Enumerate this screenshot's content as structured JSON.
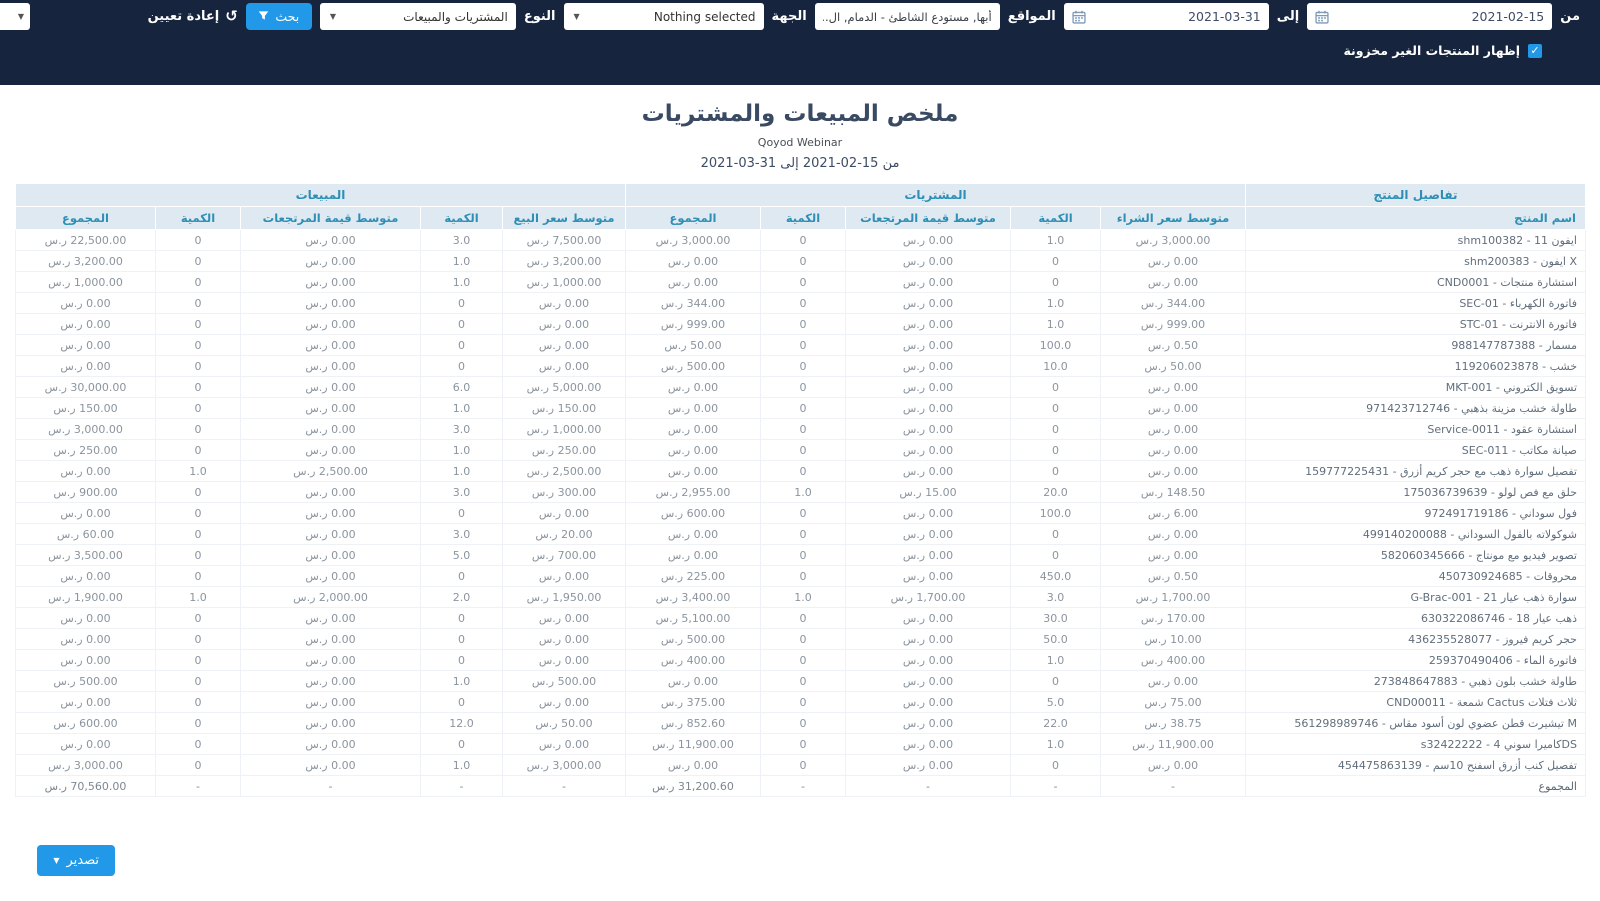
{
  "filters": {
    "from_label": "من",
    "from_value": "2021-02-15",
    "to_label": "إلى",
    "to_value": "2021-03-31",
    "locations_label": "المواقع",
    "locations_value": "أبها, مستودع الشاطئ - الدمام, ال...",
    "entity_label": "الجهة",
    "entity_value": "Nothing selected",
    "type_label": "النوع",
    "type_value": "المشتريات والمبيعات",
    "search_label": "بحث",
    "reset_label": "إعادة تعيين",
    "show_unstocked_label": "إظهار المنتجات الغير مخزونة",
    "show_unstocked_checked": true
  },
  "report": {
    "title": "ملخص المبيعات والمشتريات",
    "subtitle": "Qoyod Webinar",
    "date_range": "من 15-02-2021 إلى 31-03-2021"
  },
  "table": {
    "groups": {
      "product": "تفاصيل المنتج",
      "purchases": "المشتريات",
      "sales": "المبيعات"
    },
    "columns": {
      "product_name": "اسم المنتج",
      "purchase_avg_price": "متوسط سعر الشراء",
      "quantity": "الكمية",
      "avg_returns_value": "متوسط قيمة المرتجعات",
      "total": "المجموع",
      "sale_avg_price": "متوسط سعر البيع"
    },
    "rows": [
      [
        "shm100382 - ايفون 11",
        "3,000.00 ر.س",
        "1.0",
        "0.00 ر.س",
        "0",
        "3,000.00 ر.س",
        "7,500.00 ر.س",
        "3.0",
        "0.00 ر.س",
        "0",
        "22,500.00 ر.س"
      ],
      [
        "shm200383 - ايفون X",
        "0.00 ر.س",
        "0",
        "0.00 ر.س",
        "0",
        "0.00 ر.س",
        "3,200.00 ر.س",
        "1.0",
        "0.00 ر.س",
        "0",
        "3,200.00 ر.س"
      ],
      [
        "CND0001 - استشارة منتجات",
        "0.00 ر.س",
        "0",
        "0.00 ر.س",
        "0",
        "0.00 ر.س",
        "1,000.00 ر.س",
        "1.0",
        "0.00 ر.س",
        "0",
        "1,000.00 ر.س"
      ],
      [
        "SEC-01 - فاتورة الكهرباء",
        "344.00 ر.س",
        "1.0",
        "0.00 ر.س",
        "0",
        "344.00 ر.س",
        "0.00 ر.س",
        "0",
        "0.00 ر.س",
        "0",
        "0.00 ر.س"
      ],
      [
        "STC-01 - فاتورة الانترنت",
        "999.00 ر.س",
        "1.0",
        "0.00 ر.س",
        "0",
        "999.00 ر.س",
        "0.00 ر.س",
        "0",
        "0.00 ر.س",
        "0",
        "0.00 ر.س"
      ],
      [
        "988147787388 - مسمار",
        "0.50 ر.س",
        "100.0",
        "0.00 ر.س",
        "0",
        "50.00 ر.س",
        "0.00 ر.س",
        "0",
        "0.00 ر.س",
        "0",
        "0.00 ر.س"
      ],
      [
        "119206023878 - خشب",
        "50.00 ر.س",
        "10.0",
        "0.00 ر.س",
        "0",
        "500.00 ر.س",
        "0.00 ر.س",
        "0",
        "0.00 ر.س",
        "0",
        "0.00 ر.س"
      ],
      [
        "MKT-001 - تسويق الكتروني",
        "0.00 ر.س",
        "0",
        "0.00 ر.س",
        "0",
        "0.00 ر.س",
        "5,000.00 ر.س",
        "6.0",
        "0.00 ر.س",
        "0",
        "30,000.00 ر.س"
      ],
      [
        "971423712746 - طاولة خشب مزينة بذهبي",
        "0.00 ر.س",
        "0",
        "0.00 ر.س",
        "0",
        "0.00 ر.س",
        "150.00 ر.س",
        "1.0",
        "0.00 ر.س",
        "0",
        "150.00 ر.س"
      ],
      [
        "Service-0011 - استشارة عقود",
        "0.00 ر.س",
        "0",
        "0.00 ر.س",
        "0",
        "0.00 ر.س",
        "1,000.00 ر.س",
        "3.0",
        "0.00 ر.س",
        "0",
        "3,000.00 ر.س"
      ],
      [
        "SEC-011 - صيانة مكاتب",
        "0.00 ر.س",
        "0",
        "0.00 ر.س",
        "0",
        "0.00 ر.س",
        "250.00 ر.س",
        "1.0",
        "0.00 ر.س",
        "0",
        "250.00 ر.س"
      ],
      [
        "159777225431 - تفصيل سوارة ذهب مع حجر كريم أزرق",
        "0.00 ر.س",
        "0",
        "0.00 ر.س",
        "0",
        "0.00 ر.س",
        "2,500.00 ر.س",
        "1.0",
        "2,500.00 ر.س",
        "1.0",
        "0.00 ر.س"
      ],
      [
        "175036739639 - حلق مع فص لولو",
        "148.50 ر.س",
        "20.0",
        "15.00 ر.س",
        "1.0",
        "2,955.00 ر.س",
        "300.00 ر.س",
        "3.0",
        "0.00 ر.س",
        "0",
        "900.00 ر.س"
      ],
      [
        "972491719186 - فول سوداني",
        "6.00 ر.س",
        "100.0",
        "0.00 ر.س",
        "0",
        "600.00 ر.س",
        "0.00 ر.س",
        "0",
        "0.00 ر.س",
        "0",
        "0.00 ر.س"
      ],
      [
        "499140200088 - شوكولاته بالفول السوداني",
        "0.00 ر.س",
        "0",
        "0.00 ر.س",
        "0",
        "0.00 ر.س",
        "20.00 ر.س",
        "3.0",
        "0.00 ر.س",
        "0",
        "60.00 ر.س"
      ],
      [
        "582060345666 - تصوير فيديو مع مونتاج",
        "0.00 ر.س",
        "0",
        "0.00 ر.س",
        "0",
        "0.00 ر.س",
        "700.00 ر.س",
        "5.0",
        "0.00 ر.س",
        "0",
        "3,500.00 ر.س"
      ],
      [
        "450730924685 - محروقات",
        "0.50 ر.س",
        "450.0",
        "0.00 ر.س",
        "0",
        "225.00 ر.س",
        "0.00 ر.س",
        "0",
        "0.00 ر.س",
        "0",
        "0.00 ر.س"
      ],
      [
        "G-Brac-001 - سوارة ذهب عيار 21",
        "1,700.00 ر.س",
        "3.0",
        "1,700.00 ر.س",
        "1.0",
        "3,400.00 ر.س",
        "1,950.00 ر.س",
        "2.0",
        "2,000.00 ر.س",
        "1.0",
        "1,900.00 ر.س"
      ],
      [
        "630322086746 - ذهب عيار 18",
        "170.00 ر.س",
        "30.0",
        "0.00 ر.س",
        "0",
        "5,100.00 ر.س",
        "0.00 ر.س",
        "0",
        "0.00 ر.س",
        "0",
        "0.00 ر.س"
      ],
      [
        "436235528077 - حجر كريم فيروز",
        "10.00 ر.س",
        "50.0",
        "0.00 ر.س",
        "0",
        "500.00 ر.س",
        "0.00 ر.س",
        "0",
        "0.00 ر.س",
        "0",
        "0.00 ر.س"
      ],
      [
        "259370490406 - فاتورة الماء",
        "400.00 ر.س",
        "1.0",
        "0.00 ر.س",
        "0",
        "400.00 ر.س",
        "0.00 ر.س",
        "0",
        "0.00 ر.س",
        "0",
        "0.00 ر.س"
      ],
      [
        "273848647883 - طاولة خشب بلون ذهبي",
        "0.00 ر.س",
        "0",
        "0.00 ر.س",
        "0",
        "0.00 ر.س",
        "500.00 ر.س",
        "1.0",
        "0.00 ر.س",
        "0",
        "500.00 ر.س"
      ],
      [
        "CND00011 - شمعة Cactus ثلاث فتلات",
        "75.00 ر.س",
        "5.0",
        "0.00 ر.س",
        "0",
        "375.00 ر.س",
        "0.00 ر.س",
        "0",
        "0.00 ر.س",
        "0",
        "0.00 ر.س"
      ],
      [
        "561298989746 - تيشيرت قطن عضوي لون أسود مقاس M",
        "38.75 ر.س",
        "22.0",
        "0.00 ر.س",
        "0",
        "852.60 ر.س",
        "50.00 ر.س",
        "12.0",
        "0.00 ر.س",
        "0",
        "600.00 ر.س"
      ],
      [
        "s32422222 - كاميرا سوني 4DS",
        "11,900.00 ر.س",
        "1.0",
        "0.00 ر.س",
        "0",
        "11,900.00 ر.س",
        "0.00 ر.س",
        "0",
        "0.00 ر.س",
        "0",
        "0.00 ر.س"
      ],
      [
        "454475863139 - تفصيل كنب أزرق اسفنح 10سم",
        "0.00 ر.س",
        "0",
        "0.00 ر.س",
        "0",
        "0.00 ر.س",
        "3,000.00 ر.س",
        "1.0",
        "0.00 ر.س",
        "0",
        "3,000.00 ر.س"
      ]
    ],
    "total_row": [
      "المجموع",
      "-",
      "-",
      "-",
      "-",
      "31,200.60 ر.س",
      "-",
      "-",
      "-",
      "-",
      "70,560.00 ر.س"
    ]
  },
  "export_button": {
    "label": "تصدير"
  },
  "colors": {
    "topbar_bg": "#16243d",
    "accent_blue": "#2299e8",
    "table_header_bg": "#dfe9f2",
    "table_header_text": "#2d8fb5"
  }
}
